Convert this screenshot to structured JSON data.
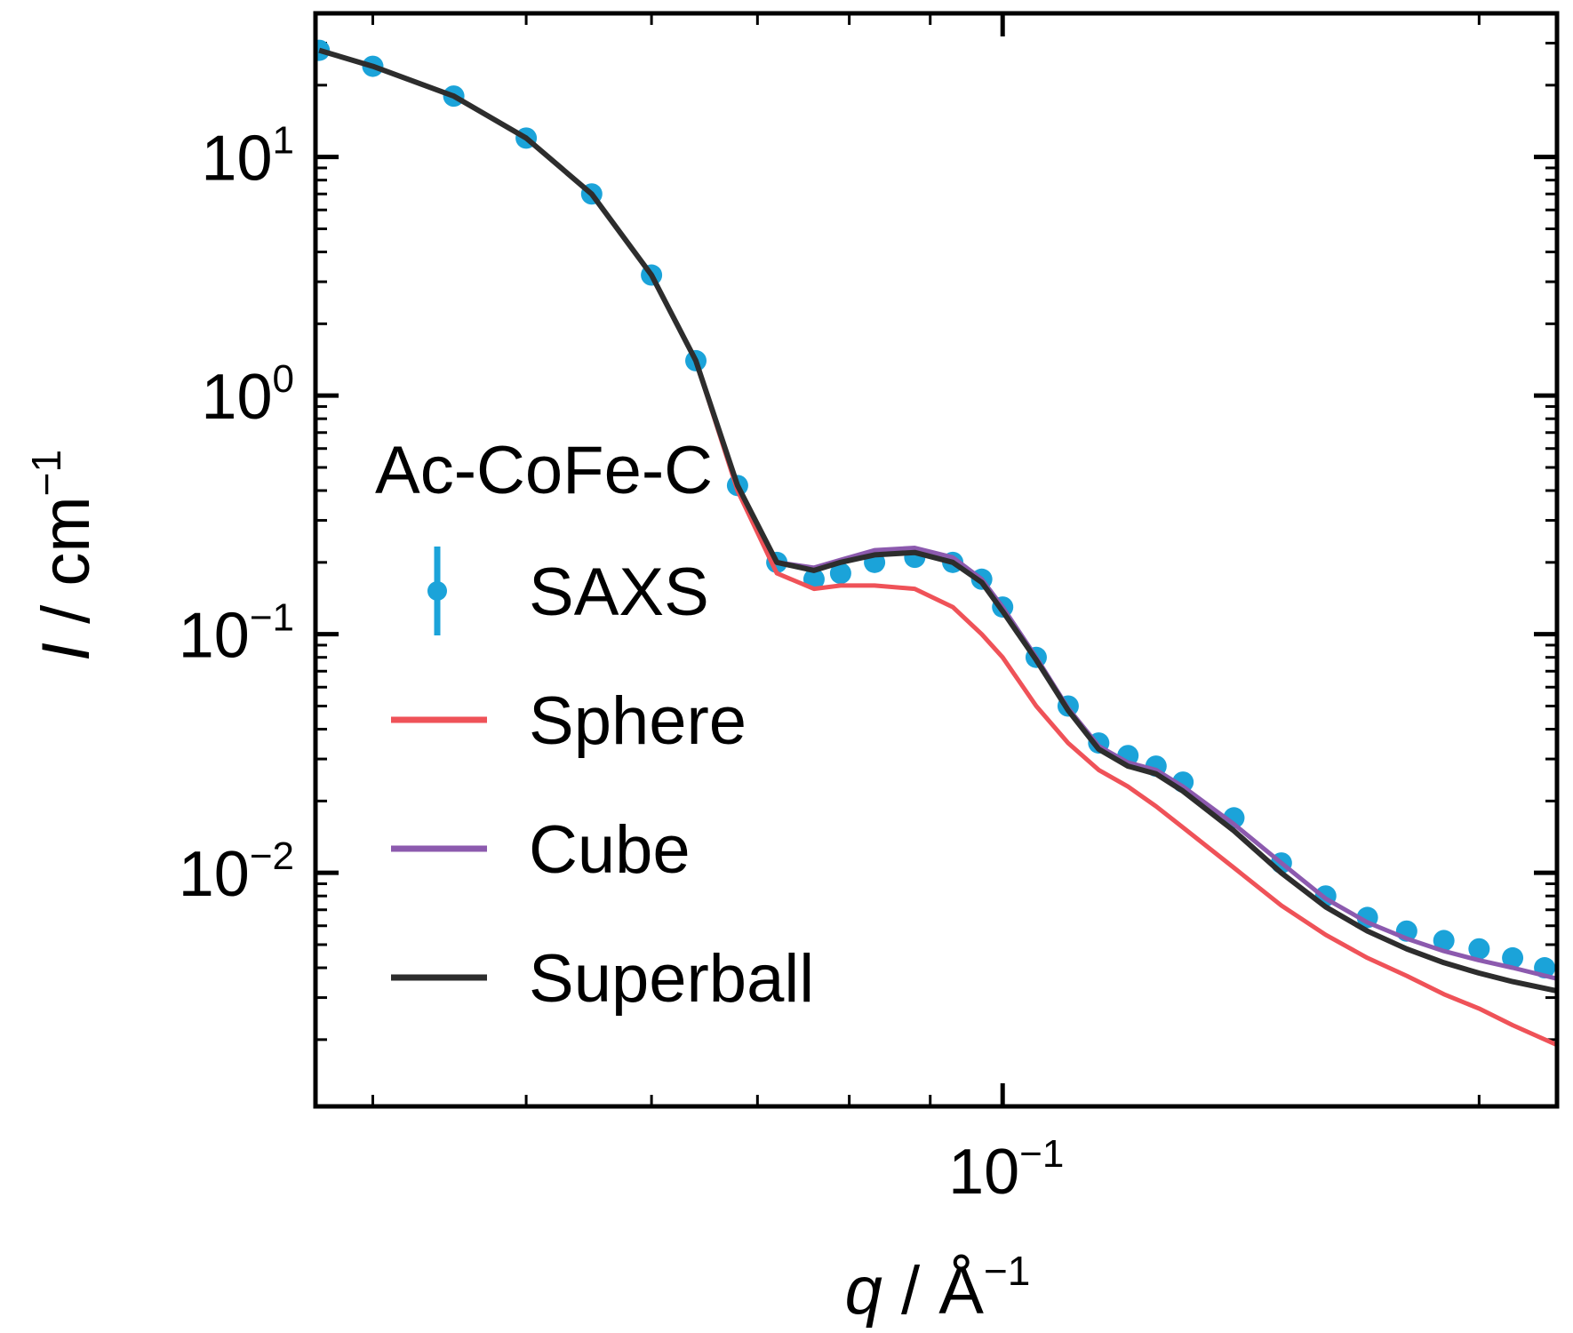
{
  "chart_data": {
    "type": "line",
    "title": "",
    "xlabel": {
      "var": "q",
      "sep": " / ",
      "unit": "Å",
      "exp": "−1"
    },
    "ylabel": {
      "var": "I",
      "sep": " / ",
      "unit": "cm",
      "exp": "−1"
    },
    "xscale": "log",
    "yscale": "log",
    "xlim": [
      0.0368,
      0.224
    ],
    "ylim": [
      0.00105,
      40
    ],
    "grid": false,
    "legend": {
      "title": "Ac-CoFe-C",
      "placement": "center-left"
    },
    "x_ticks": [
      {
        "value": 0.1,
        "base": "10",
        "exp": "−1"
      }
    ],
    "y_ticks": [
      {
        "value": 10,
        "base": "10",
        "exp": "1"
      },
      {
        "value": 1,
        "base": "10",
        "exp": "0"
      },
      {
        "value": 0.1,
        "base": "10",
        "exp": "−1"
      },
      {
        "value": 0.01,
        "base": "10",
        "exp": "−2"
      }
    ],
    "series": [
      {
        "name": "SAXS",
        "kind": "points_with_errorbars",
        "color": "#1ba3d9",
        "x": [
          0.037,
          0.04,
          0.045,
          0.05,
          0.055,
          0.06,
          0.064,
          0.068,
          0.072,
          0.076,
          0.079,
          0.083,
          0.088,
          0.093,
          0.097,
          0.1,
          0.105,
          0.11,
          0.115,
          0.12,
          0.125,
          0.13,
          0.14,
          0.15,
          0.16,
          0.17,
          0.18,
          0.19,
          0.2,
          0.21,
          0.22
        ],
        "y": [
          28,
          24,
          18,
          12,
          7,
          3.2,
          1.4,
          0.42,
          0.2,
          0.17,
          0.18,
          0.2,
          0.21,
          0.2,
          0.17,
          0.13,
          0.08,
          0.05,
          0.035,
          0.031,
          0.028,
          0.024,
          0.017,
          0.011,
          0.008,
          0.0065,
          0.0057,
          0.0052,
          0.0048,
          0.0044,
          0.004
        ]
      },
      {
        "name": "Sphere",
        "kind": "line",
        "color": "#ef5258",
        "x": [
          0.037,
          0.04,
          0.045,
          0.05,
          0.055,
          0.06,
          0.064,
          0.068,
          0.072,
          0.076,
          0.079,
          0.083,
          0.088,
          0.093,
          0.097,
          0.1,
          0.105,
          0.11,
          0.115,
          0.12,
          0.125,
          0.13,
          0.14,
          0.15,
          0.16,
          0.17,
          0.18,
          0.19,
          0.2,
          0.21,
          0.224
        ],
        "y": [
          28,
          24,
          18,
          12,
          7,
          3.2,
          1.4,
          0.4,
          0.18,
          0.155,
          0.16,
          0.16,
          0.155,
          0.13,
          0.1,
          0.08,
          0.05,
          0.035,
          0.027,
          0.023,
          0.019,
          0.0155,
          0.0105,
          0.0073,
          0.0055,
          0.0044,
          0.0037,
          0.0031,
          0.0027,
          0.0023,
          0.0019
        ]
      },
      {
        "name": "Cube",
        "kind": "line",
        "color": "#8c5aae",
        "x": [
          0.037,
          0.04,
          0.045,
          0.05,
          0.055,
          0.06,
          0.064,
          0.068,
          0.072,
          0.076,
          0.079,
          0.083,
          0.088,
          0.093,
          0.097,
          0.1,
          0.105,
          0.11,
          0.115,
          0.12,
          0.125,
          0.13,
          0.14,
          0.15,
          0.16,
          0.17,
          0.18,
          0.19,
          0.2,
          0.21,
          0.224
        ],
        "y": [
          28,
          24,
          18,
          12,
          7,
          3.2,
          1.4,
          0.42,
          0.2,
          0.19,
          0.205,
          0.225,
          0.23,
          0.21,
          0.17,
          0.13,
          0.08,
          0.049,
          0.034,
          0.029,
          0.027,
          0.023,
          0.016,
          0.011,
          0.0078,
          0.0062,
          0.0053,
          0.0047,
          0.0043,
          0.004,
          0.0036
        ]
      },
      {
        "name": "Superball",
        "kind": "line",
        "color": "#2d2d2d",
        "x": [
          0.037,
          0.04,
          0.045,
          0.05,
          0.055,
          0.06,
          0.064,
          0.068,
          0.072,
          0.076,
          0.079,
          0.083,
          0.088,
          0.093,
          0.097,
          0.1,
          0.105,
          0.11,
          0.115,
          0.12,
          0.125,
          0.13,
          0.14,
          0.15,
          0.16,
          0.17,
          0.18,
          0.19,
          0.2,
          0.21,
          0.224
        ],
        "y": [
          28,
          24,
          18,
          12,
          7,
          3.2,
          1.4,
          0.42,
          0.2,
          0.185,
          0.2,
          0.215,
          0.22,
          0.2,
          0.165,
          0.125,
          0.078,
          0.048,
          0.033,
          0.028,
          0.026,
          0.022,
          0.015,
          0.01,
          0.0072,
          0.0057,
          0.0048,
          0.0042,
          0.0038,
          0.0035,
          0.0032
        ]
      }
    ]
  }
}
